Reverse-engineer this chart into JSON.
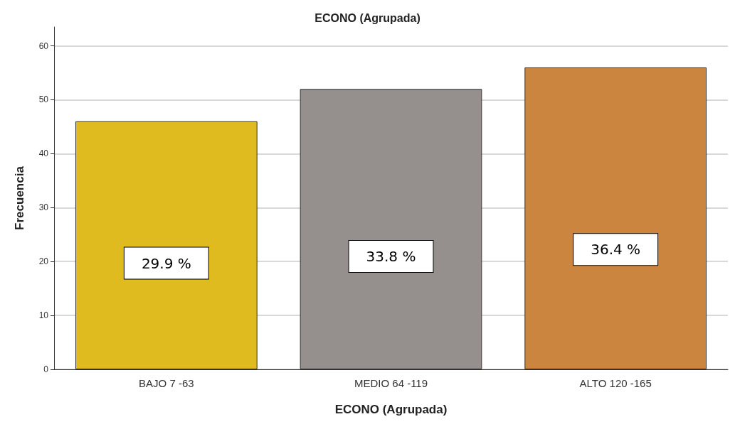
{
  "chart_data": {
    "type": "bar",
    "title": "ECONO (Agrupada)",
    "xlabel": "ECONO (Agrupada)",
    "ylabel": "Frecuencia",
    "categories": [
      "BAJO 7 -63",
      "MEDIO 64 -119",
      "ALTO 120 -165"
    ],
    "values": [
      46,
      52,
      56
    ],
    "colors": [
      "#dfbb1f",
      "#958f8e",
      "#cb853e"
    ],
    "annotations": [
      "29.9 %",
      "33.8 %",
      "36.4 %"
    ],
    "ylim": [
      0,
      63.5
    ],
    "yticks": [
      0,
      10,
      20,
      30,
      40,
      50,
      60
    ],
    "grid": "y"
  }
}
